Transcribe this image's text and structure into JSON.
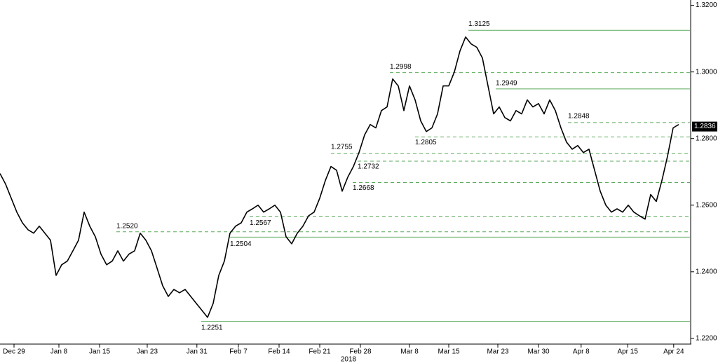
{
  "chart_data": {
    "type": "line",
    "series": [
      {
        "color": "#000000",
        "values": [
          1.2695,
          1.2663,
          1.2621,
          1.2579,
          1.2547,
          1.2526,
          1.2516,
          1.2537,
          1.2516,
          1.2495,
          1.2389,
          1.2421,
          1.2432,
          1.2463,
          1.2495,
          1.2579,
          1.2537,
          1.2505,
          1.2453,
          1.2421,
          1.2432,
          1.2463,
          1.2432,
          1.2453,
          1.2463,
          1.2516,
          1.2495,
          1.2463,
          1.2411,
          1.2358,
          1.2326,
          1.2347,
          1.2337,
          1.2347,
          1.2326,
          1.2305,
          1.2284,
          1.2263,
          1.2305,
          1.2389,
          1.2432,
          1.2516,
          1.2537,
          1.2547,
          1.2579,
          1.2589,
          1.26,
          1.2579,
          1.2589,
          1.26,
          1.2579,
          1.2505,
          1.2484,
          1.2516,
          1.2537,
          1.2568,
          1.2579,
          1.2621,
          1.2674,
          1.2716,
          1.2705,
          1.2642,
          1.2684,
          1.2716,
          1.2758,
          1.2811,
          1.2842,
          1.2832,
          1.2884,
          1.2895,
          1.2979,
          1.2958,
          1.2884,
          1.2958,
          1.2916,
          1.2853,
          1.2821,
          1.2832,
          1.2874,
          1.2958,
          1.2958,
          1.3,
          1.3063,
          1.3105,
          1.3084,
          1.3074,
          1.3042,
          1.2958,
          1.2874,
          1.2895,
          1.2863,
          1.2853,
          1.2884,
          1.2874,
          1.2916,
          1.2895,
          1.2905,
          1.2874,
          1.2916,
          1.2884,
          1.2832,
          1.2789,
          1.2768,
          1.2779,
          1.2758,
          1.2768,
          1.2705,
          1.2642,
          1.26,
          1.2579,
          1.2589,
          1.2579,
          1.26,
          1.2579,
          1.2568,
          1.2558,
          1.2632,
          1.2611,
          1.2674,
          1.2747,
          1.2832,
          1.2842
        ]
      }
    ],
    "xlim": [
      0,
      123
    ],
    "xticks": [
      {
        "value": 2.5,
        "label": "Dec 29"
      },
      {
        "value": 10.5,
        "label": "Jan 8"
      },
      {
        "value": 17.75,
        "label": "Jan 15"
      },
      {
        "value": 26.25,
        "label": "Jan 23"
      },
      {
        "value": 35.1,
        "label": "Jan 31"
      },
      {
        "value": 42.5,
        "label": "Feb 7"
      },
      {
        "value": 49.75,
        "label": "Feb 14"
      },
      {
        "value": 57,
        "label": "Feb 21"
      },
      {
        "value": 64.25,
        "label": "Feb 28"
      },
      {
        "value": 73,
        "label": "Mar 8"
      },
      {
        "value": 80,
        "label": "Mar 15"
      },
      {
        "value": 88.75,
        "label": "Mar 23"
      },
      {
        "value": 96,
        "label": "Mar 30"
      },
      {
        "value": 103.6,
        "label": "Apr 8"
      },
      {
        "value": 111.9,
        "label": "Apr 15"
      },
      {
        "value": 120.1,
        "label": "Apr 24"
      }
    ],
    "x_year": "2018",
    "ylim": [
      1.2185,
      1.3216
    ],
    "yticks": [
      {
        "value": 1.22,
        "label": "1.2200"
      },
      {
        "value": 1.24,
        "label": "1.2400"
      },
      {
        "value": 1.26,
        "label": "1.2600"
      },
      {
        "value": 1.28,
        "label": "1.2800"
      },
      {
        "value": 1.3,
        "label": "1.3000"
      },
      {
        "value": 1.32,
        "label": "1.3200"
      }
    ],
    "levels": [
      {
        "value": 1.3125,
        "label": "1.3125",
        "style": "solid"
      },
      {
        "value": 1.2998,
        "label": "1.2998",
        "style": "dashed"
      },
      {
        "value": 1.2949,
        "label": "1.2949",
        "style": "solid"
      },
      {
        "value": 1.2848,
        "label": "1.2848",
        "style": "dashed"
      },
      {
        "value": 1.2805,
        "label": "1.2805",
        "style": "dashed"
      },
      {
        "value": 1.2755,
        "label": "1.2755",
        "style": "dashed"
      },
      {
        "value": 1.2732,
        "label": "1.2732",
        "style": "dashed"
      },
      {
        "value": 1.2668,
        "label": "1.2668",
        "style": "dashed"
      },
      {
        "value": 1.2567,
        "label": "1.2567",
        "style": "dashed"
      },
      {
        "value": 1.252,
        "label": "1.2520",
        "style": "dashed"
      },
      {
        "value": 1.2504,
        "label": "1.2504",
        "style": "solid"
      },
      {
        "value": 1.2251,
        "label": "1.2251",
        "style": "solid"
      }
    ],
    "level_color": "#5cab5c",
    "last": {
      "value": 1.2836,
      "label": "1.2836"
    }
  }
}
